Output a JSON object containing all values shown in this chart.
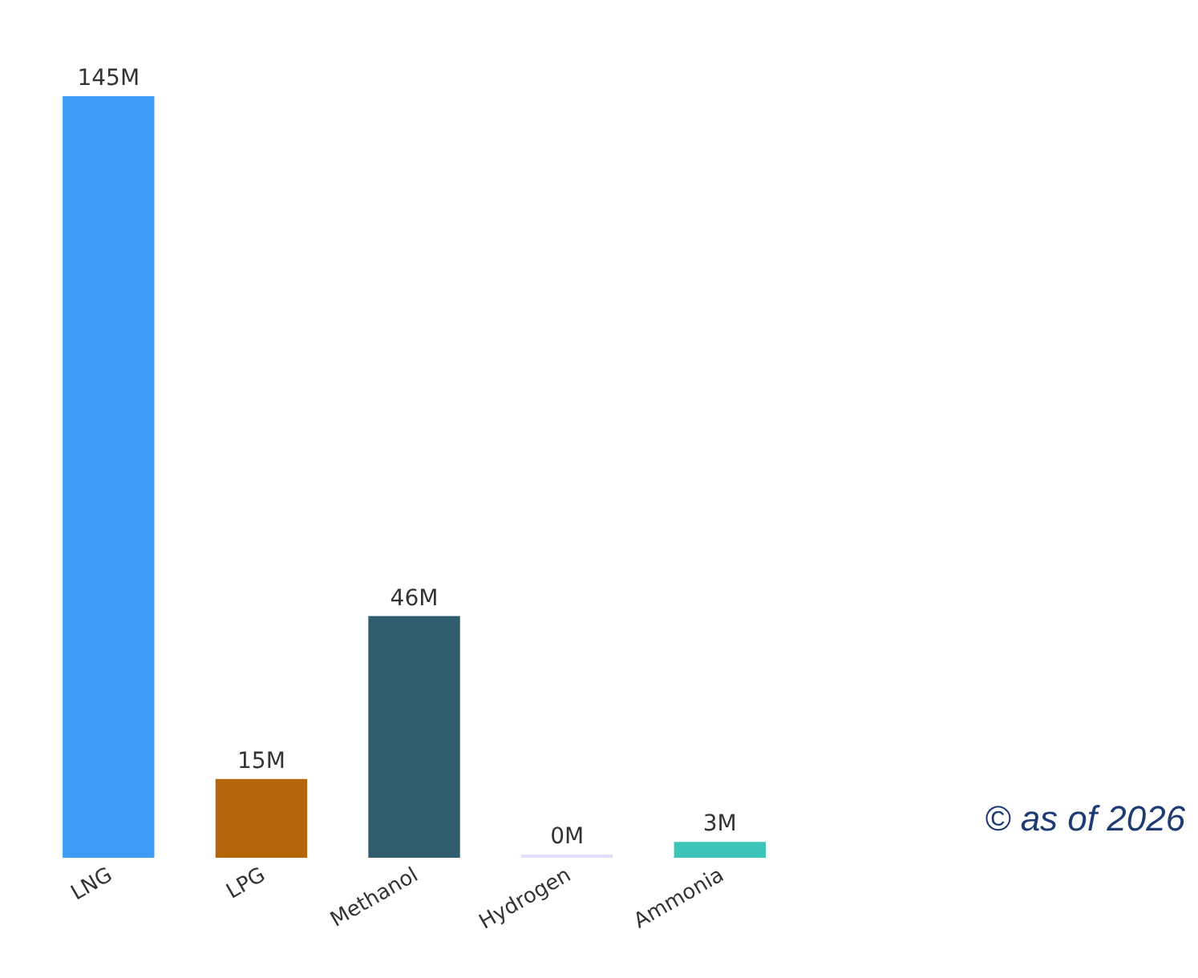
{
  "chart_data": {
    "type": "bar",
    "categories": [
      "LNG",
      "LPG",
      "Methanol",
      "Hydrogen",
      "Ammonia"
    ],
    "values": [
      145,
      15,
      46,
      0.4,
      3
    ],
    "value_labels": [
      "145M",
      "15M",
      "46M",
      "0M",
      "3M"
    ],
    "colors": [
      "#3d9df5",
      "#b5650a",
      "#2f5d6e",
      "#e0defa",
      "#3cc4b8"
    ],
    "grid": false,
    "tick_labels": "x",
    "annotations": [
      "© as of 2026"
    ]
  }
}
